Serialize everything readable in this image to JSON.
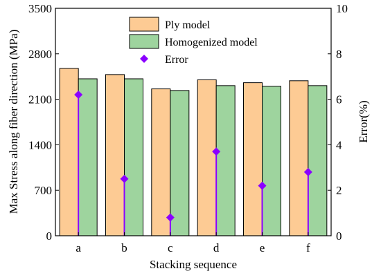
{
  "chart_data": {
    "type": "bar",
    "categories": [
      "a",
      "b",
      "c",
      "d",
      "e",
      "f"
    ],
    "series": [
      {
        "name": "Ply model",
        "values": [
          2575,
          2480,
          2260,
          2400,
          2355,
          2385
        ],
        "color": "#FDCB94",
        "axis": "left"
      },
      {
        "name": "Homogenized model",
        "values": [
          2415,
          2415,
          2235,
          2310,
          2300,
          2310
        ],
        "color": "#9ED49E",
        "axis": "left"
      }
    ],
    "error_series": {
      "name": "Error",
      "values": [
        6.2,
        2.5,
        0.8,
        3.7,
        2.2,
        2.8
      ],
      "color": "#8B00FF",
      "axis": "right"
    },
    "xlabel": "Stacking sequence",
    "ylabel": "Max Stress along fiber direction (MPa)",
    "y2label": "Error(%)",
    "ylim": [
      0,
      3500
    ],
    "y2lim": [
      0,
      10
    ],
    "yticks": [
      "0",
      "700",
      "1400",
      "2100",
      "2800",
      "3500"
    ],
    "y2ticks": [
      "0",
      "2",
      "4",
      "6",
      "8",
      "10"
    ],
    "legend_position": "top-center",
    "grid": false
  }
}
